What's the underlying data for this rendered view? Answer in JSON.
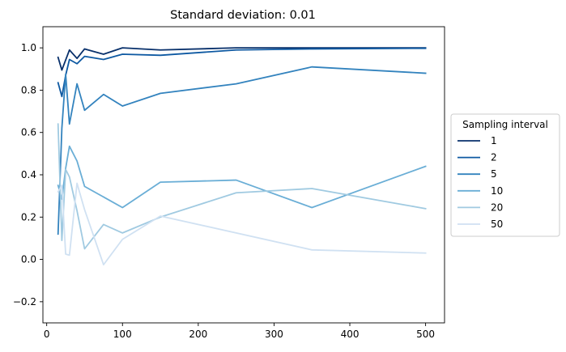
{
  "chart_data": {
    "type": "line",
    "title": "Standard deviation: 0.01",
    "xlabel": "",
    "ylabel": "",
    "xlim": [
      -5,
      525
    ],
    "ylim": [
      -0.3,
      1.1
    ],
    "xticks": [
      0,
      100,
      200,
      300,
      400,
      500
    ],
    "yticks": [
      -0.2,
      0.0,
      0.2,
      0.4,
      0.6,
      0.8,
      1.0
    ],
    "xtick_labels": [
      "0",
      "100",
      "200",
      "300",
      "400",
      "500"
    ],
    "ytick_labels": [
      "−0.2",
      "0.0",
      "0.2",
      "0.4",
      "0.6",
      "0.8",
      "1.0"
    ],
    "grid": false,
    "legend_title": "Sampling interval",
    "legend_placement": "center-right-outside",
    "series": [
      {
        "name": "1",
        "color": "#08306b",
        "x": [
          15,
          20,
          30,
          40,
          50,
          75,
          100,
          150,
          250,
          350,
          500
        ],
        "y": [
          0.955,
          0.895,
          0.99,
          0.95,
          0.995,
          0.97,
          1.0,
          0.99,
          1.0,
          1.0,
          1.0
        ]
      },
      {
        "name": "2",
        "color": "#0e59a2",
        "x": [
          15,
          20,
          25,
          30,
          40,
          50,
          75,
          100,
          150,
          250,
          350,
          500
        ],
        "y": [
          0.835,
          0.77,
          0.87,
          0.945,
          0.925,
          0.96,
          0.945,
          0.97,
          0.965,
          0.99,
          0.995,
          0.998
        ]
      },
      {
        "name": "5",
        "color": "#3383be",
        "x": [
          15,
          20,
          25,
          30,
          40,
          50,
          75,
          100,
          150,
          250,
          350,
          500
        ],
        "y": [
          0.12,
          0.62,
          0.875,
          0.64,
          0.83,
          0.705,
          0.78,
          0.725,
          0.785,
          0.83,
          0.91,
          0.88
        ]
      },
      {
        "name": "10",
        "color": "#6aaed6",
        "x": [
          15,
          20,
          25,
          30,
          40,
          50,
          100,
          150,
          250,
          350,
          500
        ],
        "y": [
          0.35,
          0.285,
          0.43,
          0.535,
          0.465,
          0.345,
          0.245,
          0.365,
          0.375,
          0.245,
          0.44
        ]
      },
      {
        "name": "20",
        "color": "#a0cae1",
        "x": [
          15,
          20,
          25,
          30,
          40,
          50,
          75,
          100,
          150,
          250,
          350,
          500
        ],
        "y": [
          0.64,
          0.09,
          0.425,
          0.39,
          0.23,
          0.05,
          0.165,
          0.125,
          0.2,
          0.315,
          0.335,
          0.24
        ]
      },
      {
        "name": "50",
        "color": "#d0e1f2",
        "x": [
          15,
          20,
          25,
          30,
          40,
          50,
          75,
          100,
          150,
          350,
          500
        ],
        "y": [
          0.32,
          0.35,
          0.025,
          0.02,
          0.36,
          0.235,
          -0.025,
          0.095,
          0.205,
          0.045,
          0.03
        ]
      }
    ]
  }
}
